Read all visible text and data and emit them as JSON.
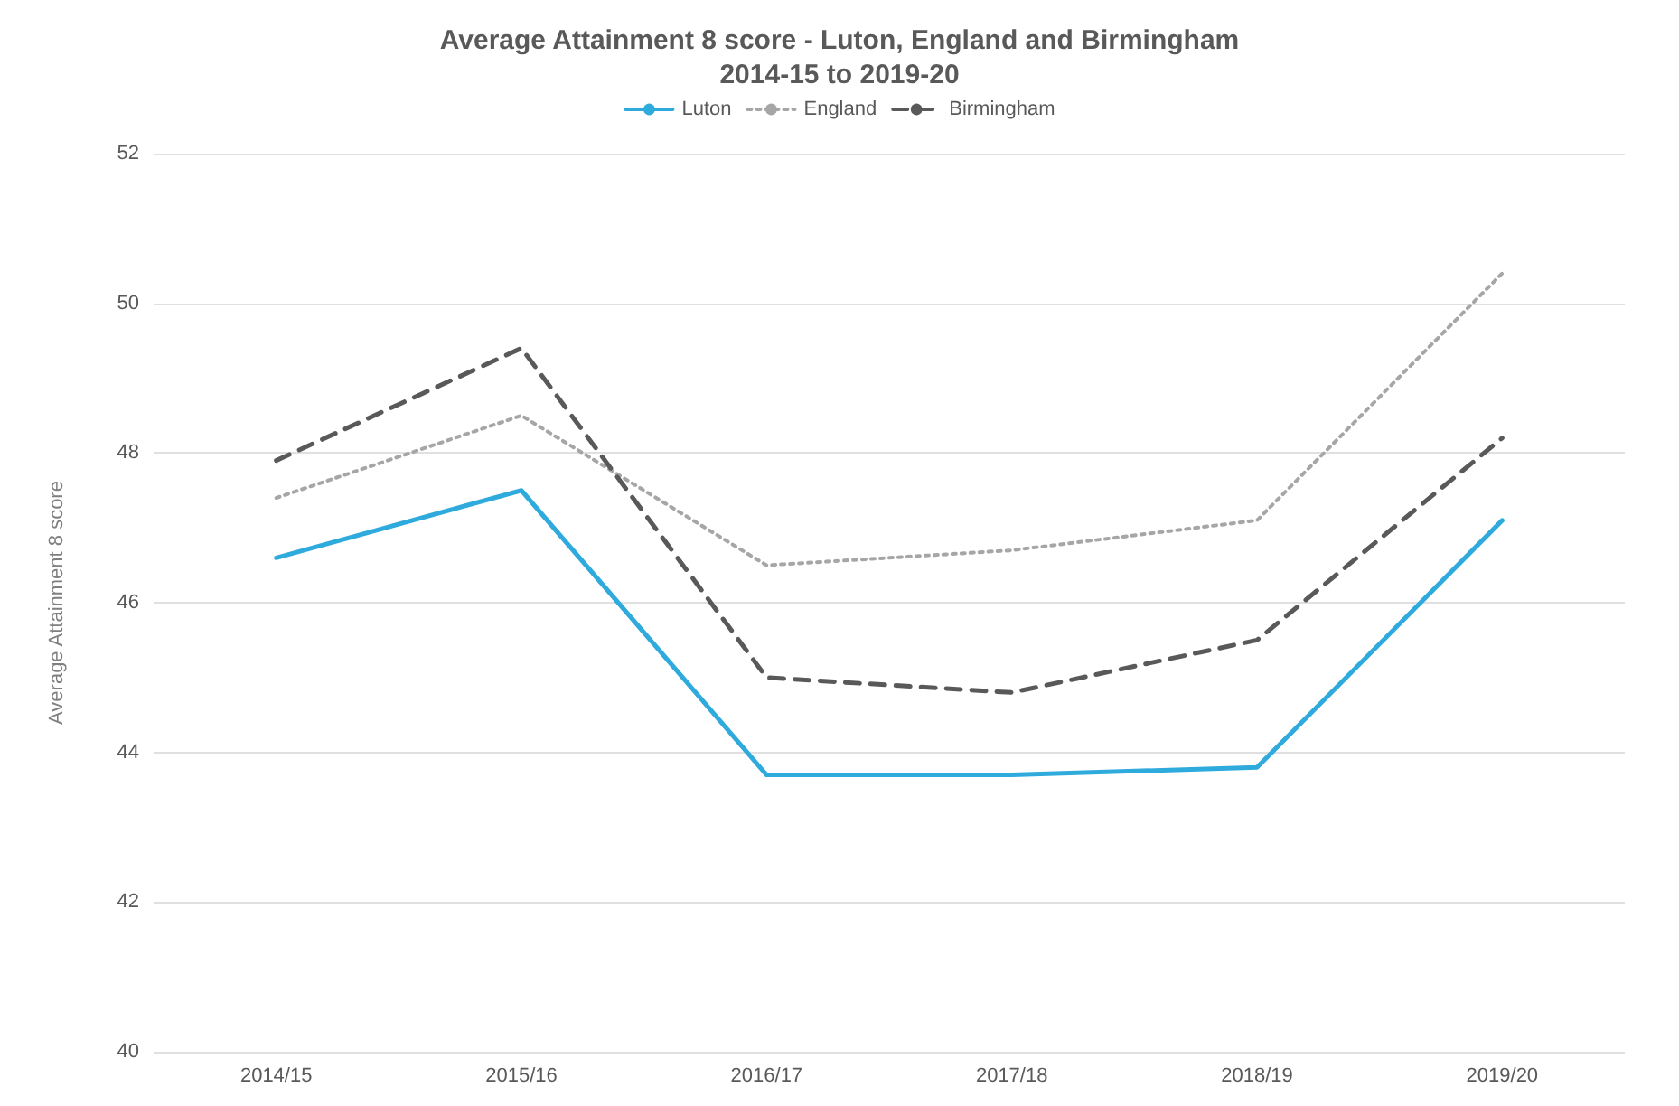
{
  "chart_data": {
    "type": "line",
    "title": "Average Attainment 8 score - Luton, England and Birmingham\n2014-15 to 2019-20",
    "ylabel": "Average Attainment 8 score",
    "categories": [
      "2014/15",
      "2015/16",
      "2016/17",
      "2017/18",
      "2018/19",
      "2019/20"
    ],
    "series": [
      {
        "name": "Luton",
        "color": "#2eaadc",
        "line_style": "solid",
        "values": [
          46.6,
          47.5,
          43.7,
          43.7,
          43.8,
          47.1
        ]
      },
      {
        "name": "England",
        "color": "#a6a6a6",
        "line_style": "dotted",
        "values": [
          47.4,
          48.5,
          46.5,
          46.7,
          47.1,
          50.4
        ]
      },
      {
        "name": "Birmingham",
        "color": "#595959",
        "line_style": "dashed",
        "values": [
          47.9,
          49.4,
          45.0,
          44.8,
          45.5,
          48.2
        ]
      }
    ],
    "ylim": [
      40,
      52
    ],
    "yticks": [
      40,
      42,
      44,
      46,
      48,
      50,
      52
    ],
    "grid": "y",
    "legend": "top",
    "marker": "none"
  }
}
